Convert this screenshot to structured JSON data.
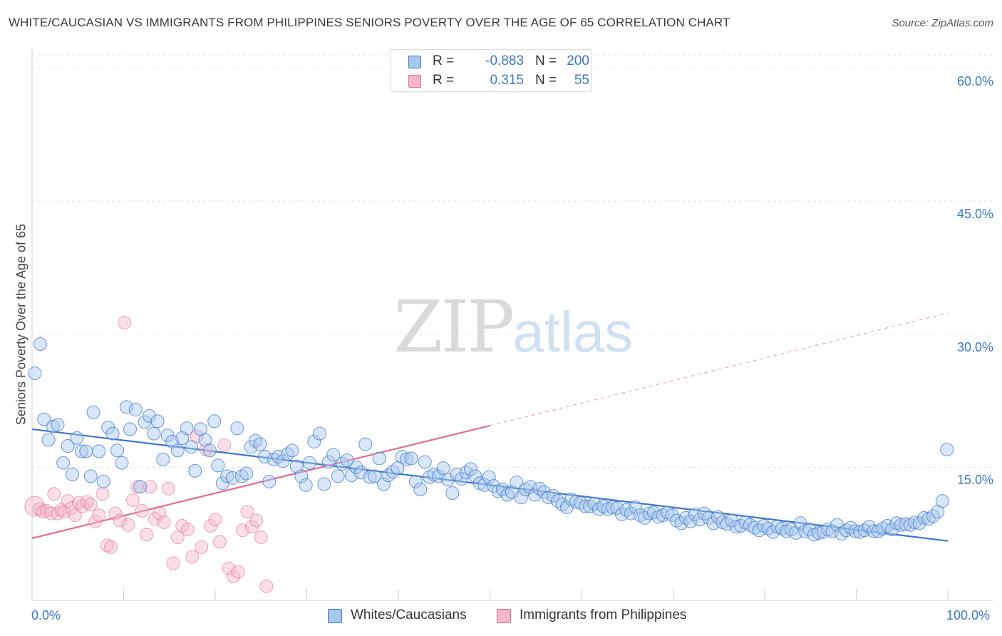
{
  "title": "WHITE/CAUCASIAN VS IMMIGRANTS FROM PHILIPPINES SENIORS POVERTY OVER THE AGE OF 65 CORRELATION CHART",
  "source": "Source: ZipAtlas.com",
  "watermark": {
    "zip": "ZIP",
    "atlas": "atlas"
  },
  "colors": {
    "blue": "#3b77c9",
    "blue_fill": "#a9c8ee",
    "pink": "#e26b96",
    "pink_fill": "#f5b6cb"
  },
  "legend": [
    {
      "r_label": "R =",
      "r_value": "-0.883",
      "n_label": "N =",
      "n_value": "200"
    },
    {
      "r_label": "R =",
      "r_value": "0.315",
      "n_label": "N =",
      "n_value": "55"
    }
  ],
  "chart_data": {
    "type": "scatter",
    "title": "WHITE/CAUCASIAN VS IMMIGRANTS FROM PHILIPPINES SENIORS POVERTY OVER THE AGE OF 65 CORRELATION CHART",
    "xlabel": "",
    "ylabel": "Seniors Poverty Over the Age of 65",
    "x_tick_labels": [
      "0.0%",
      "100.0%"
    ],
    "y_tick_labels": [
      "15.0%",
      "30.0%",
      "45.0%",
      "60.0%"
    ],
    "y_ticks": [
      15,
      30,
      45,
      60
    ],
    "xlim": [
      0,
      100
    ],
    "ylim": [
      0,
      61.5
    ],
    "grid": true,
    "legend_position": "top-center",
    "series": [
      {
        "name": "Whites/Caucasians",
        "color": "#3b77c9",
        "trend": {
          "x": [
            0,
            100
          ],
          "y": [
            19.3,
            6.7
          ],
          "dashed_extension": false
        },
        "points": [
          [
            0.3,
            25.6
          ],
          [
            0.9,
            28.9
          ],
          [
            1.3,
            20.4
          ],
          [
            1.8,
            18.1
          ],
          [
            2.3,
            19.6
          ],
          [
            2.8,
            19.8
          ],
          [
            3.4,
            15.5
          ],
          [
            3.9,
            17.4
          ],
          [
            4.4,
            14.2
          ],
          [
            4.9,
            18.3
          ],
          [
            5.4,
            16.8
          ],
          [
            5.9,
            16.8
          ],
          [
            6.4,
            14.0
          ],
          [
            6.7,
            21.2
          ],
          [
            7.3,
            16.8
          ],
          [
            7.8,
            13.4
          ],
          [
            8.3,
            19.5
          ],
          [
            8.8,
            18.8
          ],
          [
            9.3,
            16.9
          ],
          [
            9.8,
            15.5
          ],
          [
            10.3,
            21.8
          ],
          [
            10.7,
            19.3
          ],
          [
            11.3,
            21.5
          ],
          [
            11.8,
            12.8
          ],
          [
            12.3,
            20.1
          ],
          [
            12.8,
            20.8
          ],
          [
            13.3,
            18.8
          ],
          [
            13.7,
            20.2
          ],
          [
            14.3,
            15.9
          ],
          [
            14.8,
            18.6
          ],
          [
            15.3,
            17.9
          ],
          [
            15.9,
            16.9
          ],
          [
            16.4,
            18.3
          ],
          [
            16.9,
            19.4
          ],
          [
            17.4,
            17.3
          ],
          [
            17.8,
            14.6
          ],
          [
            18.4,
            19.3
          ],
          [
            18.9,
            18.1
          ],
          [
            19.4,
            16.9
          ],
          [
            19.9,
            20.2
          ],
          [
            20.3,
            15.2
          ],
          [
            20.8,
            13.2
          ],
          [
            21.3,
            14.0
          ],
          [
            21.9,
            13.8
          ],
          [
            22.4,
            19.4
          ],
          [
            22.9,
            14.0
          ],
          [
            23.4,
            14.3
          ],
          [
            23.9,
            17.3
          ],
          [
            24.4,
            18.0
          ],
          [
            24.9,
            17.6
          ],
          [
            25.4,
            16.2
          ],
          [
            25.9,
            13.4
          ],
          [
            26.4,
            15.9
          ],
          [
            26.9,
            16.2
          ],
          [
            27.4,
            15.7
          ],
          [
            27.9,
            16.5
          ],
          [
            28.4,
            16.9
          ],
          [
            28.9,
            15.1
          ],
          [
            29.4,
            14.0
          ],
          [
            29.9,
            13.0
          ],
          [
            30.3,
            15.5
          ],
          [
            30.8,
            17.9
          ],
          [
            31.4,
            18.8
          ],
          [
            31.9,
            13.1
          ],
          [
            32.4,
            15.6
          ],
          [
            32.9,
            16.4
          ],
          [
            33.4,
            14.0
          ],
          [
            33.9,
            15.4
          ],
          [
            34.4,
            15.8
          ],
          [
            34.9,
            14.1
          ],
          [
            35.4,
            15.0
          ],
          [
            35.9,
            14.4
          ],
          [
            36.4,
            17.6
          ],
          [
            36.9,
            13.9
          ],
          [
            37.4,
            14.0
          ],
          [
            37.9,
            16.0
          ],
          [
            38.4,
            13.1
          ],
          [
            38.9,
            14.1
          ],
          [
            39.4,
            14.5
          ],
          [
            39.9,
            14.9
          ],
          [
            40.4,
            16.2
          ],
          [
            40.9,
            15.9
          ],
          [
            41.4,
            16.0
          ],
          [
            41.9,
            13.4
          ],
          [
            42.4,
            12.5
          ],
          [
            42.9,
            15.6
          ],
          [
            43.4,
            13.9
          ],
          [
            43.9,
            14.2
          ],
          [
            44.4,
            14.0
          ],
          [
            44.9,
            14.9
          ],
          [
            45.4,
            13.6
          ],
          [
            45.9,
            12.1
          ],
          [
            46.4,
            14.2
          ],
          [
            46.9,
            13.7
          ],
          [
            47.4,
            14.4
          ],
          [
            47.9,
            14.8
          ],
          [
            48.4,
            14.0
          ],
          [
            48.9,
            13.2
          ],
          [
            49.4,
            13.0
          ],
          [
            49.9,
            13.9
          ],
          [
            50.4,
            12.9
          ],
          [
            50.9,
            12.3
          ],
          [
            51.4,
            12.5
          ],
          [
            51.9,
            11.9
          ],
          [
            52.4,
            12.2
          ],
          [
            52.9,
            13.3
          ],
          [
            53.4,
            11.6
          ],
          [
            53.9,
            12.5
          ],
          [
            54.4,
            12.8
          ],
          [
            54.9,
            11.9
          ],
          [
            55.4,
            12.6
          ],
          [
            55.9,
            12.2
          ],
          [
            56.4,
            11.6
          ],
          [
            56.9,
            11.8
          ],
          [
            57.4,
            11.2
          ],
          [
            57.9,
            10.8
          ],
          [
            58.4,
            10.5
          ],
          [
            58.9,
            11.4
          ],
          [
            59.4,
            11.1
          ],
          [
            59.9,
            11.0
          ],
          [
            60.4,
            10.6
          ],
          [
            60.9,
            10.6
          ],
          [
            61.4,
            10.9
          ],
          [
            61.9,
            10.3
          ],
          [
            62.4,
            10.6
          ],
          [
            62.9,
            10.3
          ],
          [
            63.4,
            10.5
          ],
          [
            63.9,
            10.4
          ],
          [
            64.4,
            9.7
          ],
          [
            64.9,
            10.2
          ],
          [
            65.4,
            9.8
          ],
          [
            65.9,
            10.5
          ],
          [
            66.4,
            9.6
          ],
          [
            66.9,
            9.3
          ],
          [
            67.4,
            9.8
          ],
          [
            67.9,
            9.9
          ],
          [
            68.4,
            9.4
          ],
          [
            68.9,
            9.6
          ],
          [
            69.4,
            9.9
          ],
          [
            69.9,
            9.6
          ],
          [
            70.4,
            9.0
          ],
          [
            70.9,
            8.7
          ],
          [
            71.4,
            9.3
          ],
          [
            71.9,
            8.9
          ],
          [
            72.4,
            9.7
          ],
          [
            72.9,
            9.1
          ],
          [
            73.4,
            9.8
          ],
          [
            73.9,
            9.3
          ],
          [
            74.4,
            8.7
          ],
          [
            74.9,
            9.4
          ],
          [
            75.4,
            8.8
          ],
          [
            75.9,
            8.6
          ],
          [
            76.4,
            9.0
          ],
          [
            76.9,
            8.3
          ],
          [
            77.4,
            8.4
          ],
          [
            77.9,
            8.8
          ],
          [
            78.4,
            8.5
          ],
          [
            78.9,
            8.2
          ],
          [
            79.4,
            7.9
          ],
          [
            79.9,
            8.4
          ],
          [
            80.4,
            8.1
          ],
          [
            80.9,
            7.7
          ],
          [
            81.4,
            8.3
          ],
          [
            81.9,
            8.1
          ],
          [
            82.4,
            7.8
          ],
          [
            82.9,
            8.0
          ],
          [
            83.4,
            7.6
          ],
          [
            83.9,
            8.7
          ],
          [
            84.4,
            7.8
          ],
          [
            84.9,
            8.0
          ],
          [
            85.4,
            7.4
          ],
          [
            85.9,
            7.6
          ],
          [
            86.4,
            7.7
          ],
          [
            86.9,
            8.0
          ],
          [
            87.4,
            7.8
          ],
          [
            87.9,
            8.5
          ],
          [
            88.4,
            7.5
          ],
          [
            88.9,
            7.9
          ],
          [
            89.4,
            8.2
          ],
          [
            89.9,
            7.8
          ],
          [
            90.4,
            7.7
          ],
          [
            90.9,
            7.9
          ],
          [
            91.4,
            8.3
          ],
          [
            91.9,
            7.8
          ],
          [
            92.4,
            7.8
          ],
          [
            92.9,
            8.1
          ],
          [
            93.4,
            8.4
          ],
          [
            93.9,
            8.0
          ],
          [
            94.4,
            8.7
          ],
          [
            94.9,
            8.5
          ],
          [
            95.4,
            8.6
          ],
          [
            95.9,
            8.5
          ],
          [
            96.4,
            8.8
          ],
          [
            96.9,
            8.7
          ],
          [
            97.4,
            9.3
          ],
          [
            97.9,
            9.2
          ],
          [
            98.4,
            9.5
          ],
          [
            98.9,
            10.0
          ],
          [
            99.4,
            11.2
          ],
          [
            99.9,
            17.0
          ]
        ]
      },
      {
        "name": "Immigrants from Philippines",
        "color": "#e26b96",
        "trend": {
          "x": [
            0,
            50
          ],
          "y": [
            7.0,
            19.7
          ],
          "dashed_extension": {
            "x": [
              50,
              100
            ],
            "y": [
              19.7,
              32.4
            ]
          }
        },
        "points": [
          [
            0.3,
            10.6
          ],
          [
            0.8,
            10.3
          ],
          [
            1.2,
            10.0
          ],
          [
            1.6,
            10.1
          ],
          [
            2.1,
            9.8
          ],
          [
            2.4,
            12.0
          ],
          [
            2.8,
            9.8
          ],
          [
            3.2,
            10.2
          ],
          [
            3.5,
            10.0
          ],
          [
            3.9,
            11.2
          ],
          [
            4.3,
            10.4
          ],
          [
            4.7,
            9.6
          ],
          [
            5.1,
            11.0
          ],
          [
            5.5,
            10.6
          ],
          [
            6.0,
            11.1
          ],
          [
            6.4,
            10.8
          ],
          [
            6.9,
            8.9
          ],
          [
            7.3,
            9.6
          ],
          [
            7.7,
            12.0
          ],
          [
            8.2,
            6.2
          ],
          [
            8.6,
            6.0
          ],
          [
            9.1,
            9.8
          ],
          [
            9.6,
            9.0
          ],
          [
            10.1,
            31.3
          ],
          [
            10.5,
            8.5
          ],
          [
            11.0,
            11.3
          ],
          [
            11.5,
            12.8
          ],
          [
            12.0,
            10.1
          ],
          [
            12.5,
            7.4
          ],
          [
            12.9,
            12.8
          ],
          [
            13.4,
            9.2
          ],
          [
            13.9,
            9.8
          ],
          [
            14.4,
            8.8
          ],
          [
            14.9,
            12.6
          ],
          [
            15.4,
            4.2
          ],
          [
            15.9,
            7.1
          ],
          [
            16.4,
            8.4
          ],
          [
            17.0,
            8.0
          ],
          [
            17.5,
            4.9
          ],
          [
            18.0,
            18.5
          ],
          [
            18.5,
            6.0
          ],
          [
            19.0,
            17.0
          ],
          [
            19.5,
            8.4
          ],
          [
            20.0,
            9.1
          ],
          [
            20.5,
            6.6
          ],
          [
            21.0,
            17.5
          ],
          [
            21.5,
            3.6
          ],
          [
            22.0,
            2.7
          ],
          [
            22.5,
            3.2
          ],
          [
            23.0,
            7.9
          ],
          [
            23.5,
            10.0
          ],
          [
            24.0,
            8.3
          ],
          [
            24.5,
            9.0
          ],
          [
            25.0,
            7.1
          ],
          [
            25.6,
            1.6
          ]
        ]
      }
    ]
  },
  "bottom_legend": [
    {
      "label": "Whites/Caucasians"
    },
    {
      "label": "Immigrants from Philippines"
    }
  ]
}
